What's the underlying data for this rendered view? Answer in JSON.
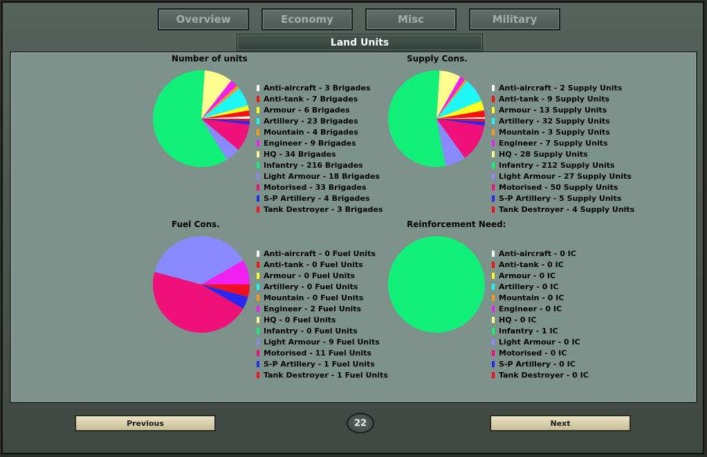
{
  "tabs": [
    "Overview",
    "Economy",
    "Misc",
    "Military"
  ],
  "panel_title": "Land Units",
  "unit_types": [
    {
      "name": "Anti-aircraft",
      "color": "#ffffff"
    },
    {
      "name": "Anti-tank",
      "color": "#ff1010"
    },
    {
      "name": "Armour",
      "color": "#ffff20"
    },
    {
      "name": "Artillery",
      "color": "#20f8f8"
    },
    {
      "name": "Mountain",
      "color": "#ff9a10"
    },
    {
      "name": "Engineer",
      "color": "#f020f0"
    },
    {
      "name": "HQ",
      "color": "#ffff90"
    },
    {
      "name": "Infantry",
      "color": "#10f078"
    },
    {
      "name": "Light Armour",
      "color": "#8a8aff"
    },
    {
      "name": "Motorised",
      "color": "#f0107a"
    },
    {
      "name": "S-P Artillery",
      "color": "#2828f0"
    },
    {
      "name": "Tank Destroyer",
      "color": "#f01020"
    }
  ],
  "chart_data": [
    {
      "type": "pie",
      "title": "Number of units",
      "unit": "Brigades",
      "values": [
        3,
        7,
        6,
        23,
        4,
        9,
        34,
        216,
        18,
        33,
        4,
        3
      ],
      "legend": [
        "Anti-aircraft - 3 Brigades",
        "Anti-tank - 7 Brigades",
        "Armour - 6 Brigades",
        "Artillery - 23 Brigades",
        "Mountain - 4 Brigades",
        "Engineer - 9 Brigades",
        "HQ - 34 Brigades",
        "Infantry - 216 Brigades",
        "Light Armour - 18 Brigades",
        "Motorised - 33 Brigades",
        "S-P Artillery - 4 Brigades",
        "Tank Destroyer - 3 Brigades"
      ]
    },
    {
      "type": "pie",
      "title": "Supply Cons.",
      "unit": "Supply Units",
      "values": [
        2,
        9,
        13,
        32,
        3,
        7,
        28,
        212,
        27,
        50,
        5,
        4
      ],
      "legend": [
        "Anti-aircraft - 2 Supply Units",
        "Anti-tank - 9 Supply Units",
        "Armour - 13 Supply Units",
        "Artillery - 32 Supply Units",
        "Mountain - 3 Supply Units",
        "Engineer - 7 Supply Units",
        "HQ - 28 Supply Units",
        "Infantry - 212 Supply Units",
        "Light Armour - 27 Supply Units",
        "Motorised - 50 Supply Units",
        "S-P Artillery - 5 Supply Units",
        "Tank Destroyer - 4 Supply Units"
      ]
    },
    {
      "type": "pie",
      "title": "Fuel Cons.",
      "unit": "Fuel Units",
      "values": [
        0,
        0,
        0,
        0,
        0,
        2,
        0,
        0,
        9,
        11,
        1,
        1
      ],
      "legend": [
        "Anti-aircraft - 0 Fuel Units",
        "Anti-tank - 0 Fuel Units",
        "Armour - 0 Fuel Units",
        "Artillery - 0 Fuel Units",
        "Mountain - 0 Fuel Units",
        "Engineer - 2 Fuel Units",
        "HQ - 0 Fuel Units",
        "Infantry - 0 Fuel Units",
        "Light Armour - 9 Fuel Units",
        "Motorised - 11 Fuel Units",
        "S-P Artillery - 1 Fuel Units",
        "Tank Destroyer - 1 Fuel Units"
      ]
    },
    {
      "type": "pie",
      "title": "Reinforcement Need:",
      "unit": "IC",
      "values": [
        0,
        0,
        0,
        0,
        0,
        0,
        0,
        1,
        0,
        0,
        0,
        0
      ],
      "legend": [
        "Anti-aircraft - 0 IC",
        "Anti-tank - 0 IC",
        "Armour - 0 IC",
        "Artillery - 0 IC",
        "Mountain - 0 IC",
        "Engineer - 0 IC",
        "HQ - 0 IC",
        "Infantry - 1 IC",
        "Light Armour - 0 IC",
        "Motorised - 0 IC",
        "S-P Artillery - 0 IC",
        "Tank Destroyer - 0 IC"
      ]
    }
  ],
  "buttons": {
    "previous": "Previous",
    "next": "Next"
  },
  "page_number": "22"
}
